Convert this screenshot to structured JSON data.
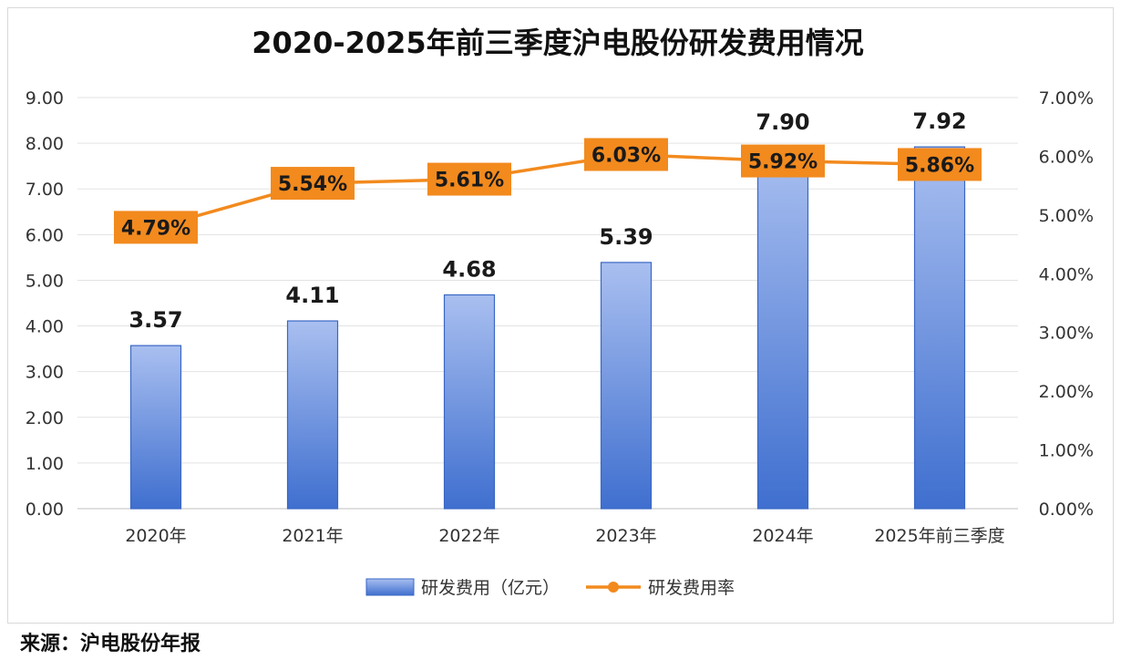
{
  "source_note": "来源：沪电股份年报",
  "chart_data": {
    "type": "bar",
    "title": "2020-2025年前三季度沪电股份研发费用情况",
    "categories": [
      "2020年",
      "2021年",
      "2022年",
      "2023年",
      "2024年",
      "2025年前三季度"
    ],
    "series": [
      {
        "name": "研发费用（亿元）",
        "type": "bar",
        "axis": "left",
        "values": [
          3.57,
          4.11,
          4.68,
          5.39,
          7.9,
          7.92
        ],
        "labels": [
          "3.57",
          "4.11",
          "4.68",
          "5.39",
          "7.90",
          "7.92"
        ],
        "color": "#4472c4"
      },
      {
        "name": "研发费用率",
        "type": "line",
        "axis": "right",
        "values": [
          4.79,
          5.54,
          5.61,
          6.03,
          5.92,
          5.86
        ],
        "labels": [
          "4.79%",
          "5.54%",
          "5.61%",
          "6.03%",
          "5.92%",
          "5.86%"
        ],
        "color": "#f28a1e"
      }
    ],
    "y_left": {
      "ylim": [
        0,
        9
      ],
      "ticks": [
        "0.00",
        "1.00",
        "2.00",
        "3.00",
        "4.00",
        "5.00",
        "6.00",
        "7.00",
        "8.00",
        "9.00"
      ]
    },
    "y_right": {
      "ylim": [
        0,
        7
      ],
      "ticks": [
        "0.00%",
        "1.00%",
        "2.00%",
        "3.00%",
        "4.00%",
        "5.00%",
        "6.00%",
        "7.00%"
      ]
    },
    "grid": true,
    "legend_position": "bottom"
  }
}
